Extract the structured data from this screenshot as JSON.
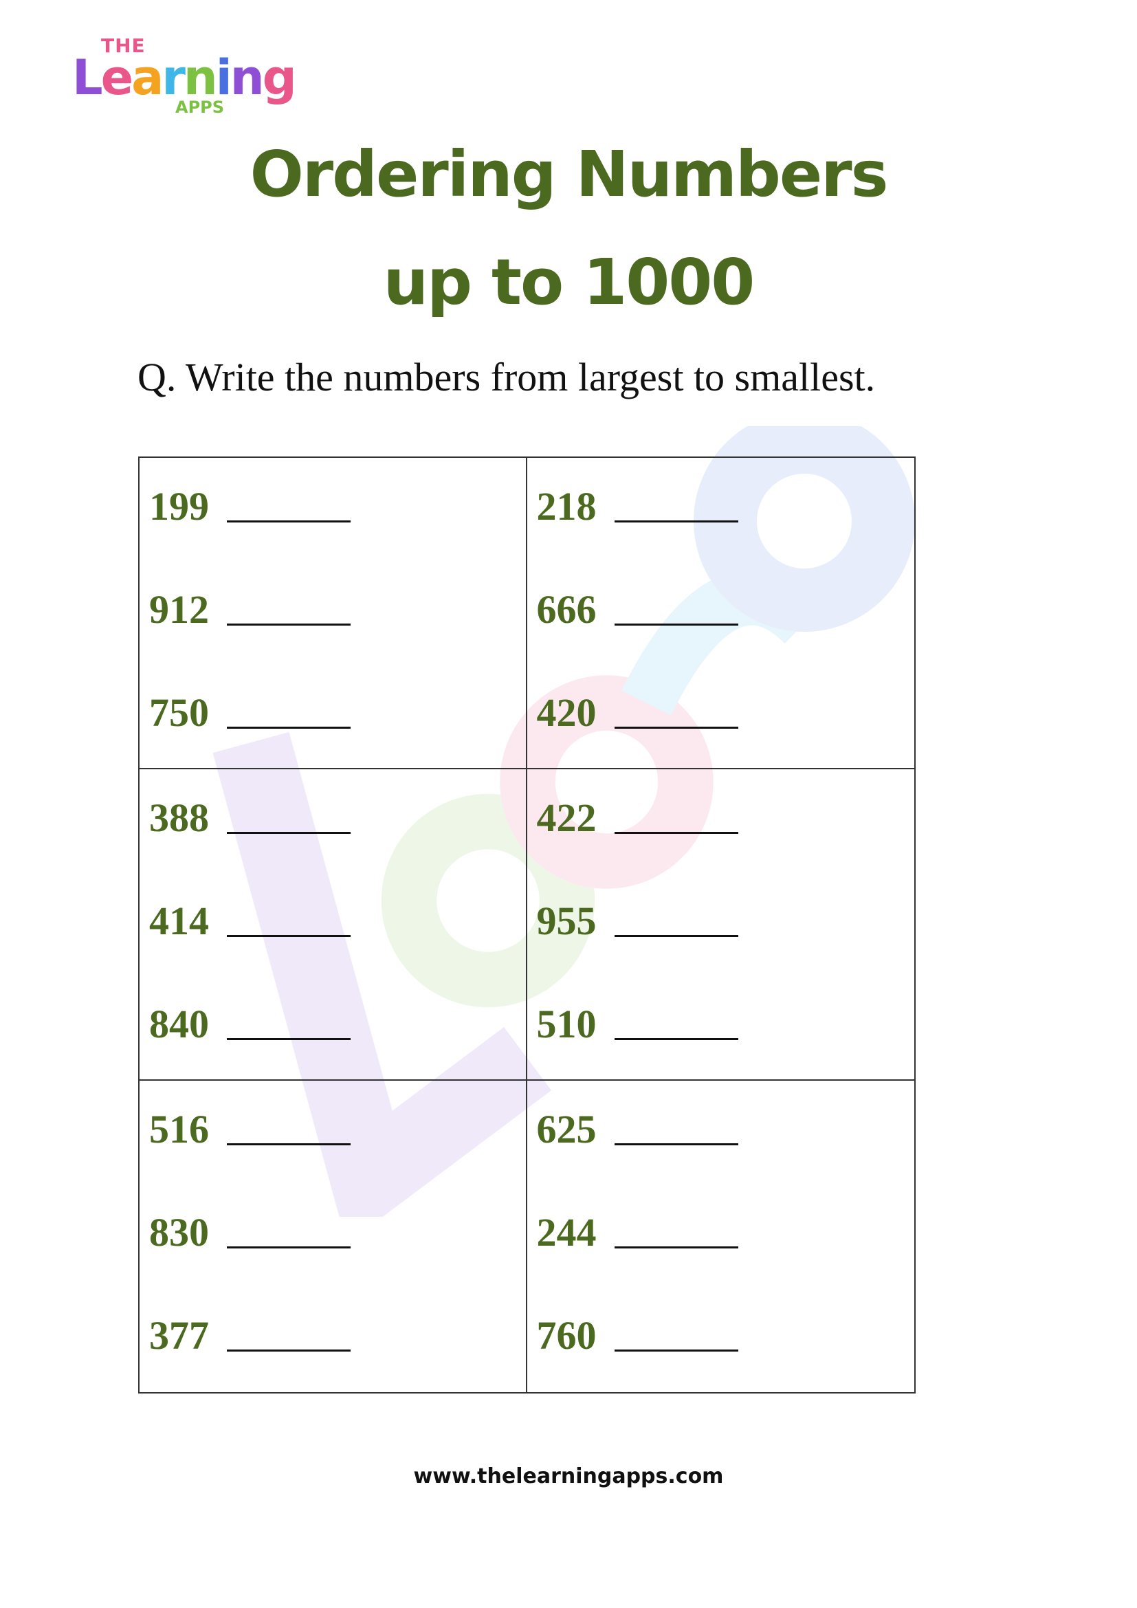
{
  "logo": {
    "the": "THE",
    "learning": "Learning",
    "apps": "APPS",
    "colors": [
      "#8e4fd6",
      "#e8568a",
      "#f4a321",
      "#3fb6e8",
      "#7cc142",
      "#4a6fe0"
    ]
  },
  "title": {
    "line1": "Ordering Numbers",
    "line2": "up to 1000"
  },
  "question": "Q. Write the numbers from largest to smallest.",
  "groups": [
    {
      "numbers": [
        "199",
        "912",
        "750"
      ]
    },
    {
      "numbers": [
        "218",
        "666",
        "420"
      ]
    },
    {
      "numbers": [
        "388",
        "414",
        "840"
      ]
    },
    {
      "numbers": [
        "422",
        "955",
        "510"
      ]
    },
    {
      "numbers": [
        "516",
        "830",
        "377"
      ]
    },
    {
      "numbers": [
        "625",
        "244",
        "760"
      ]
    }
  ],
  "footer": "www.thelearningapps.com",
  "colors": {
    "accent": "#4b6a1f"
  }
}
